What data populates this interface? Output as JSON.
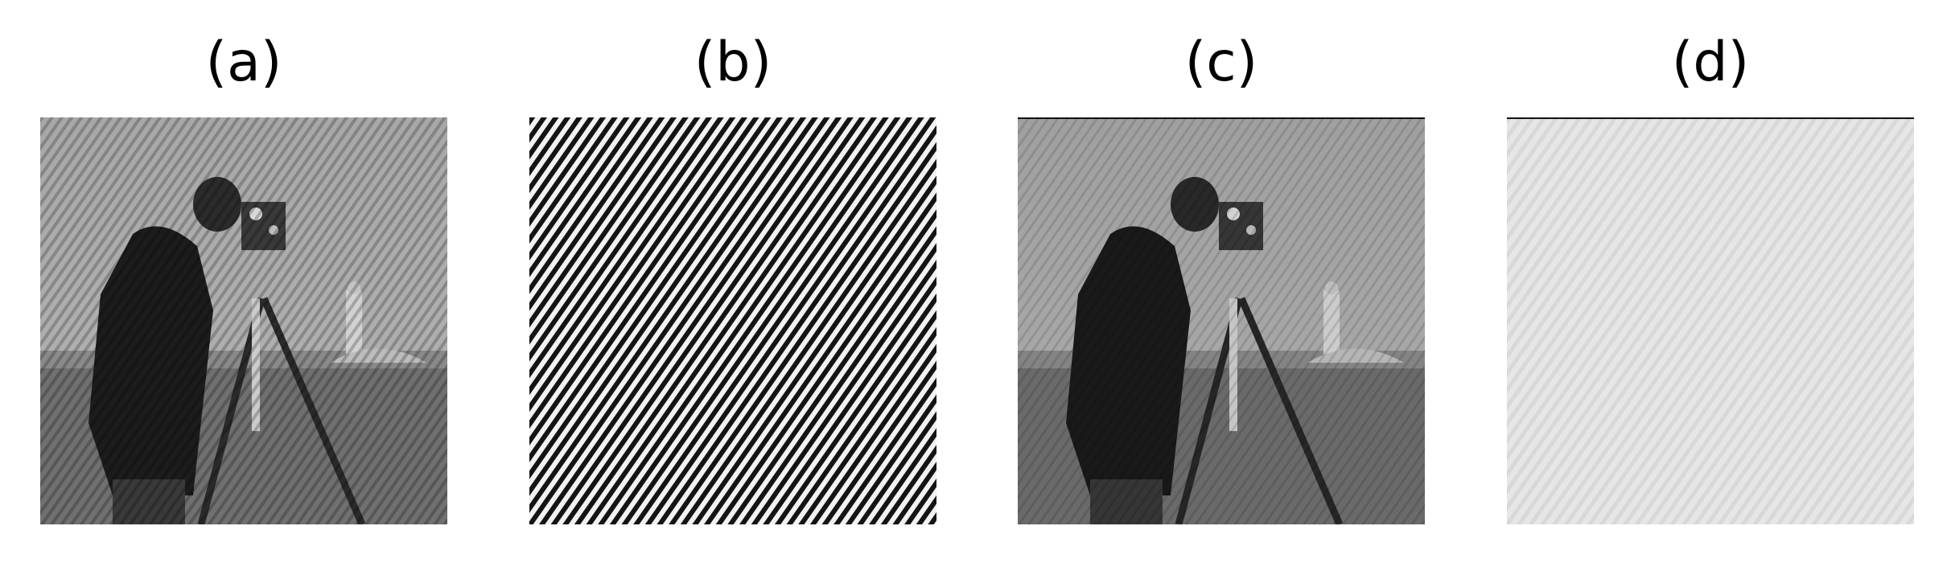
{
  "panels": [
    {
      "label": "(a)",
      "content": "photograph-with-stripes"
    },
    {
      "label": "(b)",
      "content": "diagonal-stripe-pattern"
    },
    {
      "label": "(c)",
      "content": "filtered-photograph"
    },
    {
      "label": "(d)",
      "content": "residual-light-stripes"
    }
  ],
  "colors": {
    "background": "#ffffff",
    "stripe_dark": "#141414",
    "stripe_light": "#f2f2f2",
    "sky": "#9c9c9c",
    "ground": "#6f6f6f",
    "coat": "#1a1a1a",
    "residual": "#e3e3e3"
  }
}
